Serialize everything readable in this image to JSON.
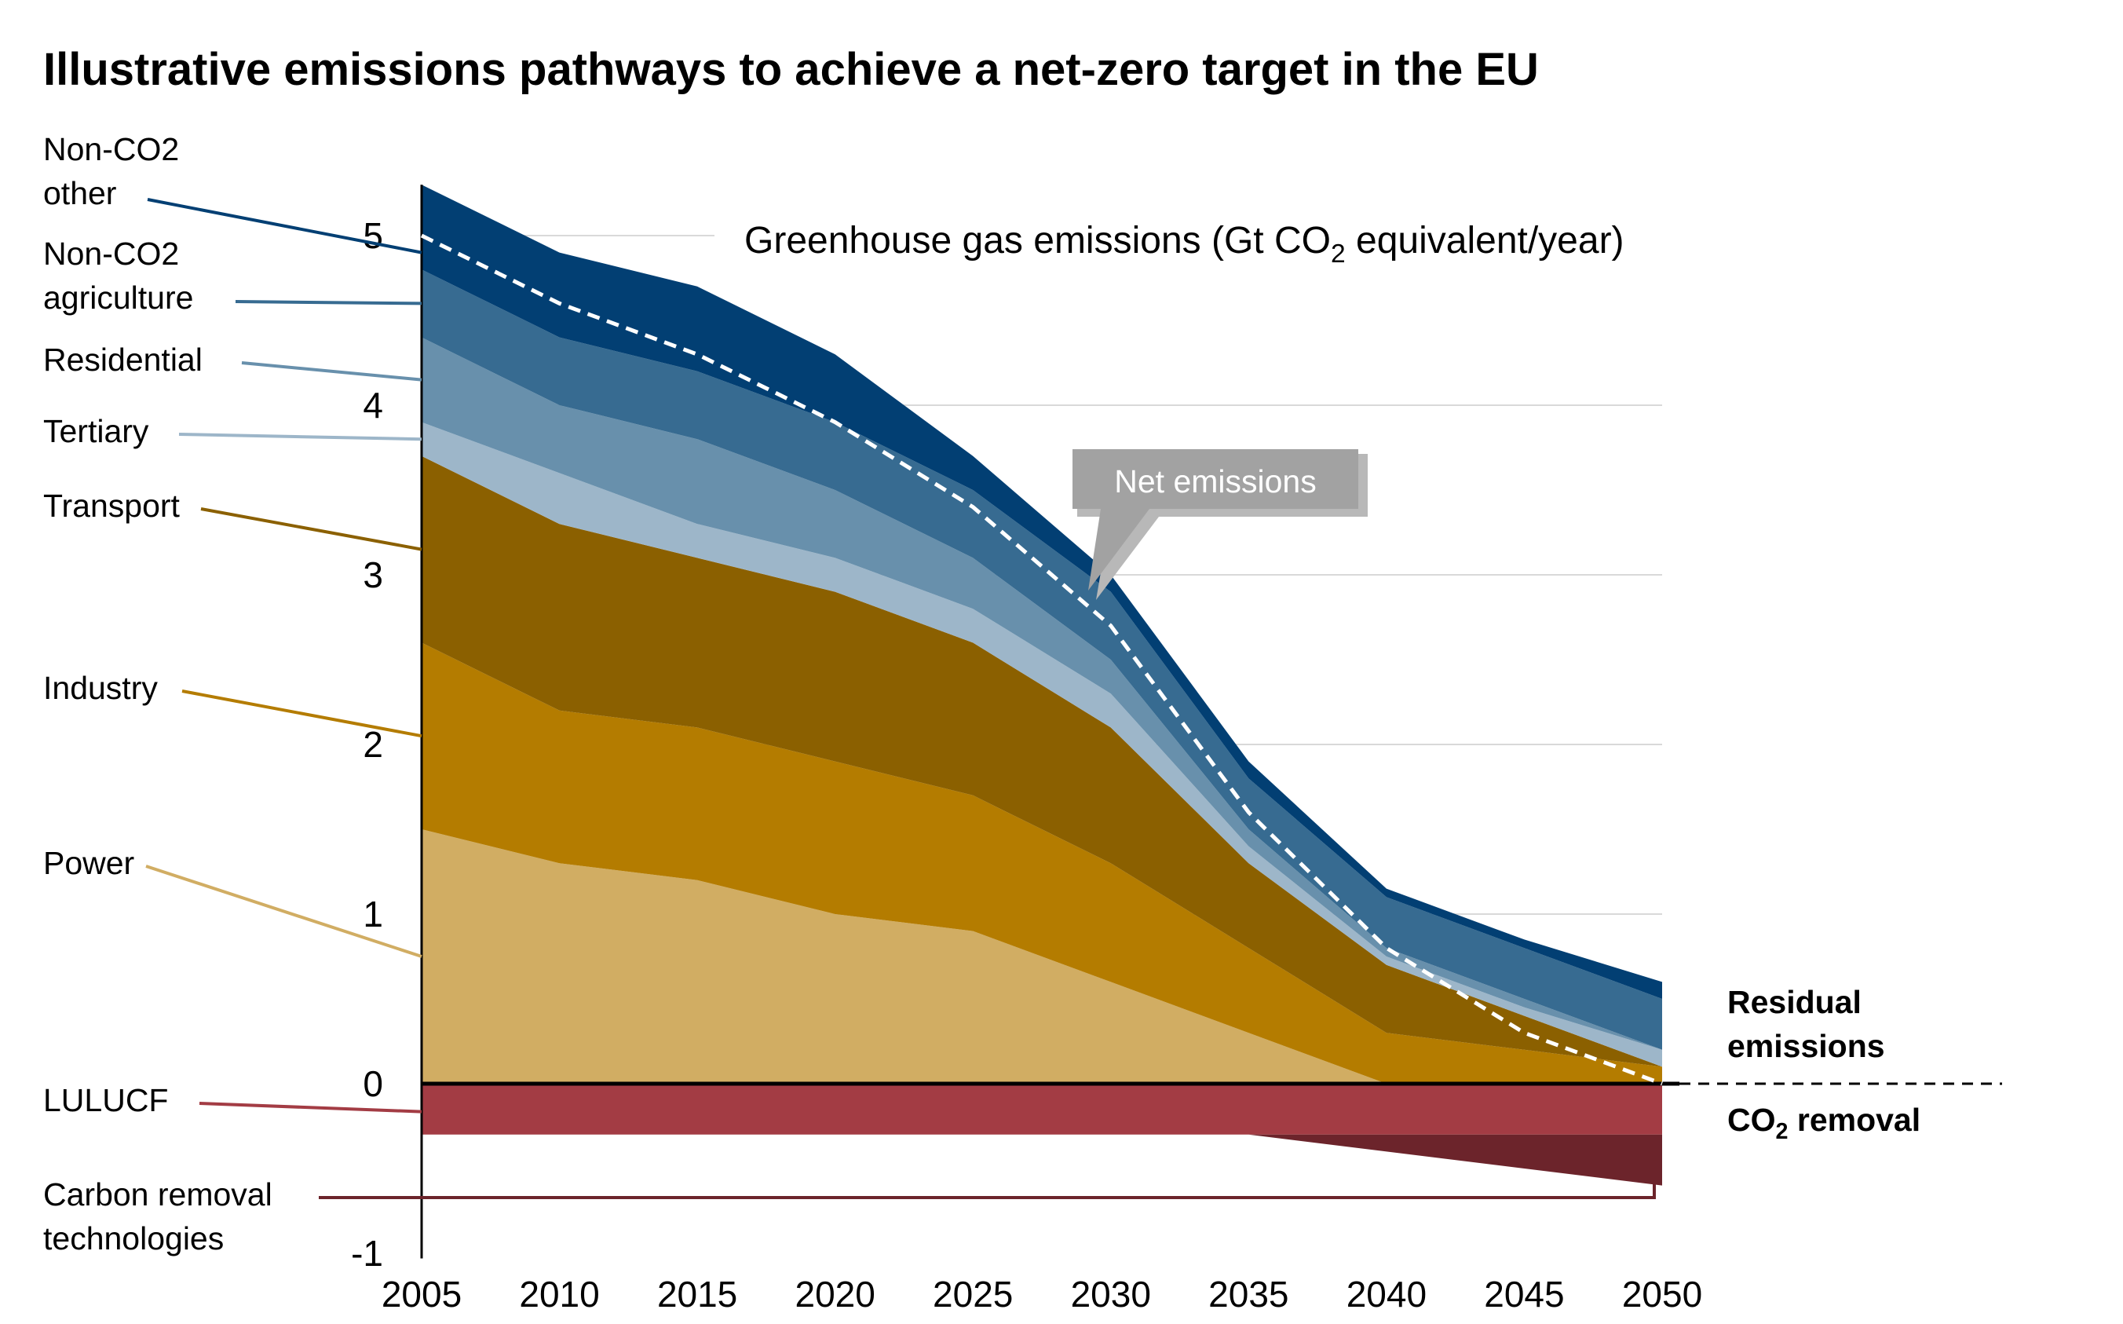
{
  "chart_data": {
    "type": "area",
    "title": "Illustrative emissions pathways to achieve a net-zero target in the EU",
    "ylabel_prefix": "Greenhouse gas emissions (Gt CO",
    "ylabel_sub": "2",
    "ylabel_suffix": " equivalent/year)",
    "x": [
      2005,
      2010,
      2015,
      2020,
      2025,
      2030,
      2035,
      2040,
      2045,
      2050
    ],
    "xticks": [
      "2005",
      "2010",
      "2015",
      "2020",
      "2025",
      "2030",
      "2035",
      "2040",
      "2045",
      "2050"
    ],
    "yticks": [
      "-1",
      "0",
      "1",
      "2",
      "3",
      "4",
      "5"
    ],
    "ylim": [
      -1,
      5.3
    ],
    "grid": true,
    "series": [
      {
        "name": "Power",
        "color": "#d1ad63",
        "values": [
          1.5,
          1.3,
          1.2,
          1.0,
          0.9,
          0.6,
          0.3,
          0.0,
          0.0,
          0.0
        ]
      },
      {
        "name": "Industry",
        "color": "#b47c00",
        "values": [
          1.1,
          0.9,
          0.9,
          0.9,
          0.8,
          0.7,
          0.5,
          0.3,
          0.2,
          0.1
        ]
      },
      {
        "name": "Transport",
        "color": "#8b6000",
        "values": [
          1.1,
          1.1,
          1.0,
          1.0,
          0.9,
          0.8,
          0.5,
          0.4,
          0.2,
          0.0
        ]
      },
      {
        "name": "Tertiary",
        "color": "#9db6c9",
        "values": [
          0.2,
          0.3,
          0.2,
          0.2,
          0.2,
          0.2,
          0.1,
          0.05,
          0.05,
          0.1
        ]
      },
      {
        "name": "Residential",
        "color": "#6890ac",
        "values": [
          0.5,
          0.4,
          0.5,
          0.4,
          0.3,
          0.2,
          0.1,
          0.05,
          0.05,
          0.0
        ]
      },
      {
        "name": "Non-CO2 agriculture",
        "color": "#376b91",
        "values": [
          0.4,
          0.4,
          0.4,
          0.4,
          0.4,
          0.4,
          0.3,
          0.3,
          0.3,
          0.3
        ]
      },
      {
        "name": "Non-CO2 other",
        "color": "#023f73",
        "values": [
          0.5,
          0.5,
          0.5,
          0.4,
          0.2,
          0.1,
          0.1,
          0.05,
          0.05,
          0.1
        ]
      }
    ],
    "removal_series": [
      {
        "name": "LULUCF",
        "color": "#a33c44",
        "values": [
          -0.3,
          -0.3,
          -0.3,
          -0.3,
          -0.3,
          -0.3,
          -0.3,
          -0.3,
          -0.3,
          -0.3
        ]
      },
      {
        "name": "Carbon removal technologies",
        "color": "#6c242b",
        "values": [
          0,
          0,
          0,
          0,
          0,
          0,
          0,
          -0.1,
          -0.2,
          -0.3
        ]
      }
    ],
    "net_emissions": {
      "name": "Net emissions",
      "values": [
        5.0,
        4.6,
        4.3,
        3.9,
        3.4,
        2.7,
        1.6,
        0.8,
        0.3,
        0.0
      ]
    },
    "left_labels": [
      {
        "lines": [
          "Non-CO2",
          "other"
        ],
        "color": "#023f73"
      },
      {
        "lines": [
          "Non-CO2",
          "agriculture"
        ],
        "color": "#376b91"
      },
      {
        "lines": [
          "Residential"
        ],
        "color": "#6890ac"
      },
      {
        "lines": [
          "Tertiary"
        ],
        "color": "#9db6c9"
      },
      {
        "lines": [
          "Transport"
        ],
        "color": "#8b6000"
      },
      {
        "lines": [
          "Industry"
        ],
        "color": "#b47c00"
      },
      {
        "lines": [
          "Power"
        ],
        "color": "#d1ad63"
      },
      {
        "lines": [
          "LULUCF"
        ],
        "color": "#a33c44"
      },
      {
        "lines": [
          "Carbon removal",
          "technologies"
        ],
        "color": "#6c242b"
      }
    ],
    "annotations": {
      "net_emissions_callout": "Net emissions",
      "residual_line1": "Residual",
      "residual_line2": "emissions",
      "removal_prefix": "CO",
      "removal_sub": "2",
      "removal_suffix": " removal"
    }
  }
}
